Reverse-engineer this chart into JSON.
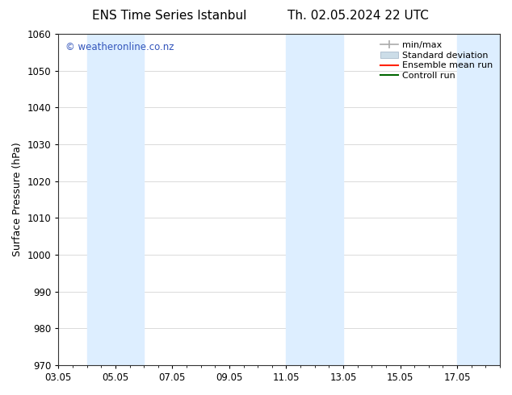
{
  "title_left": "ENS Time Series Istanbul",
  "title_right": "Th. 02.05.2024 22 UTC",
  "ylabel": "Surface Pressure (hPa)",
  "ylim": [
    970,
    1060
  ],
  "yticks": [
    970,
    980,
    990,
    1000,
    1010,
    1020,
    1030,
    1040,
    1050,
    1060
  ],
  "xticks": [
    "03.05",
    "05.05",
    "07.05",
    "09.05",
    "11.05",
    "13.05",
    "15.05",
    "17.05"
  ],
  "x_values": [
    3,
    5,
    7,
    9,
    11,
    13,
    15,
    17
  ],
  "x_min": 3,
  "x_max": 18.5,
  "watermark": "© weatheronline.co.nz",
  "watermark_color": "#3355bb",
  "bg_color": "#ffffff",
  "plot_bg_color": "#ffffff",
  "shaded_bands": [
    {
      "x_start": 4.0,
      "x_end": 6.0,
      "color": "#ddeeff"
    },
    {
      "x_start": 11.0,
      "x_end": 13.0,
      "color": "#ddeeff"
    },
    {
      "x_start": 17.0,
      "x_end": 18.5,
      "color": "#ddeeff"
    }
  ],
  "legend_entries": [
    {
      "label": "min/max",
      "color": "#aaaaaa",
      "style": "minmax"
    },
    {
      "label": "Standard deviation",
      "color": "#ccdde8",
      "style": "band"
    },
    {
      "label": "Ensemble mean run",
      "color": "#ff2200",
      "style": "line"
    },
    {
      "label": "Controll run",
      "color": "#006600",
      "style": "line"
    }
  ],
  "title_fontsize": 11,
  "axis_label_fontsize": 9,
  "tick_fontsize": 8.5,
  "legend_fontsize": 8,
  "watermark_fontsize": 8.5
}
